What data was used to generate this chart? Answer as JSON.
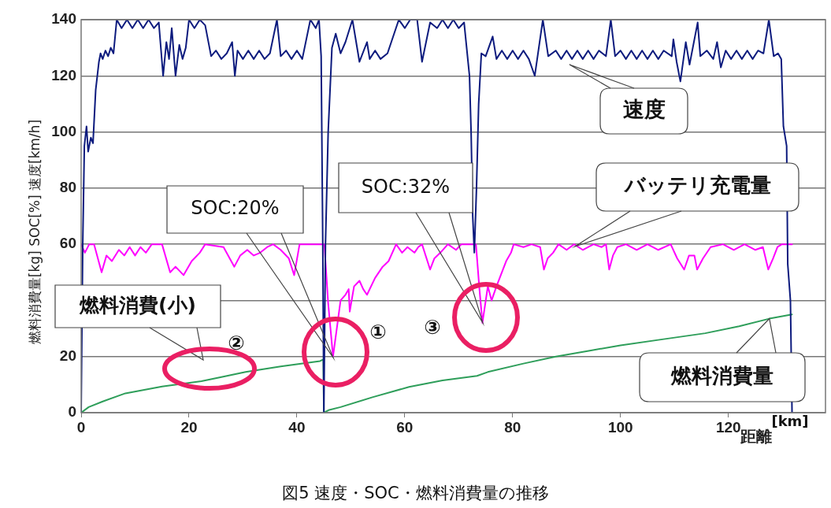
{
  "chart_data": {
    "type": "line",
    "title": "図5 速度・SOC・燃料消費量の推移",
    "xlabel": "距離",
    "ylabel": "燃料消費量[kg] SOC[%] 速度[km/h]",
    "xlim": [
      0,
      138
    ],
    "xticks": [
      0,
      20,
      40,
      60,
      80,
      100,
      120
    ],
    "ylim": [
      0,
      140
    ],
    "yticks": [
      0,
      20,
      {
        "value": 40,
        "label": null
      },
      60,
      80,
      100,
      120,
      140
    ],
    "grid": "y",
    "legend": false,
    "marker": "none",
    "line_style": "solid",
    "series": [
      {
        "color": "#0d1b7e",
        "x": [
          0,
          0.3,
          0.6,
          1.0,
          1.3,
          1.8,
          2.2,
          2.7,
          3.3,
          3.6,
          4,
          4.5,
          5,
          5.5,
          6.0,
          6.6,
          7.5,
          8.5,
          9.5,
          10.5,
          11.5,
          12.5,
          13.5,
          14.4,
          15.2,
          15.8,
          16.3,
          16.8,
          17.5,
          18.2,
          18.8,
          19.4,
          20.0,
          21,
          22,
          23,
          24.1,
          25,
          26,
          27,
          28,
          28.5,
          29,
          30,
          31,
          32,
          33,
          34,
          35,
          36.3,
          37,
          38,
          39,
          40,
          41,
          42.5,
          43.5,
          44.1,
          44.5,
          44.8,
          45.0,
          45.3,
          45.8,
          46.5,
          47.2,
          48.1,
          49,
          50.3,
          51.6,
          53,
          53.5,
          54.5,
          55.5,
          56.8,
          58.9,
          60,
          61,
          62.3,
          63.2,
          64.7,
          66,
          67,
          68,
          69,
          70,
          71,
          72.0,
          72.3,
          72.6,
          72.9,
          73.3,
          73.7,
          74.2,
          75,
          76.3,
          77,
          78,
          79,
          80,
          81,
          82,
          83,
          84.1,
          85.6,
          86.6,
          88,
          89,
          90,
          91,
          92,
          93,
          94,
          95,
          96,
          97.3,
          98.2,
          99,
          100,
          101,
          102,
          103,
          104,
          105,
          106,
          107,
          108,
          109.5,
          109.8,
          110.4,
          111.1,
          112.1,
          112.8,
          114.3,
          114.8,
          116,
          117.2,
          117.9,
          118.6,
          119.5,
          120.5,
          121.5,
          122.5,
          123.5,
          124.5,
          125.5,
          126.5,
          127.5,
          128.4,
          129.2,
          129.8,
          130.2,
          130.8,
          131.0,
          131.5,
          131.8
        ],
        "values": [
          0,
          60,
          95,
          102,
          93,
          98,
          96,
          115,
          125,
          128,
          126,
          129,
          127,
          130,
          128,
          140,
          137,
          140,
          137,
          140,
          137,
          140,
          137,
          139,
          120,
          132,
          126,
          137,
          120,
          131,
          126,
          130,
          140,
          137,
          140,
          138,
          127,
          129,
          126,
          128,
          132,
          120,
          129,
          126,
          129,
          126,
          129,
          126,
          128,
          140,
          127,
          129,
          126,
          129,
          126,
          140,
          137,
          140,
          127,
          60,
          0,
          60,
          100,
          130,
          135,
          128,
          132,
          140,
          125,
          132,
          126,
          129,
          126,
          128,
          140,
          137,
          140,
          140,
          125,
          139,
          137,
          140,
          137,
          140,
          137,
          139,
          120,
          100,
          70,
          57,
          80,
          110,
          128,
          127,
          134,
          126,
          129,
          126,
          129,
          126,
          129,
          126,
          120,
          140,
          127,
          129,
          126,
          129,
          126,
          129,
          126,
          129,
          126,
          129,
          127,
          140,
          127,
          129,
          126,
          129,
          126,
          129,
          126,
          129,
          126,
          129,
          127,
          133,
          125,
          118,
          132,
          124,
          139,
          127,
          129,
          126,
          132,
          123,
          129,
          126,
          129,
          126,
          129,
          126,
          129,
          128,
          140,
          127,
          128,
          126,
          102,
          95,
          53,
          40,
          0
        ]
      },
      {
        "color": "#ff00ff",
        "x": [
          0,
          0.7,
          1.5,
          2.4,
          3.8,
          4.7,
          5.7,
          7,
          8,
          9,
          10,
          11,
          12,
          13.1,
          15,
          16.5,
          17.5,
          19,
          20.5,
          22,
          23,
          26.4,
          28.4,
          29.5,
          30.8,
          32,
          33.2,
          34.5,
          35.6,
          37,
          38.5,
          39.5,
          40.5,
          45.1,
          45.8,
          46.7,
          47.4,
          48.1,
          49.0,
          49.6,
          49.8,
          50.6,
          51.6,
          52.3,
          53,
          54.5,
          55.9,
          57,
          58.4,
          59.5,
          60.5,
          61.8,
          62.5,
          63.2,
          64.7,
          65.5,
          66.6,
          68,
          69.5,
          70.5,
          73.2,
          73.8,
          74.4,
          75.4,
          76.1,
          77,
          77.8,
          78.8,
          79.7,
          80.2,
          82,
          83.5,
          85.1,
          85.8,
          86.5,
          87.5,
          88.5,
          90,
          91.4,
          93,
          95,
          96.5,
          97.3,
          97.9,
          98.6,
          99.4,
          101,
          103,
          105,
          107,
          109.3,
          110.5,
          111.8,
          112.7,
          113.7,
          114.2,
          115.3,
          116.7,
          119,
          121,
          123,
          125,
          126.4,
          127.4,
          128.3,
          129.1,
          129.9,
          131.8
        ],
        "values": [
          60,
          57,
          60,
          60,
          50,
          56,
          54,
          58,
          56,
          59,
          56,
          59,
          57,
          60,
          60,
          50,
          52,
          49,
          54,
          57,
          60,
          59,
          52,
          56,
          58,
          56,
          57,
          59,
          60,
          58,
          55,
          49,
          60,
          60,
          39,
          20,
          30,
          40,
          42,
          44,
          36,
          45,
          47,
          44,
          42,
          48,
          52,
          54,
          60,
          57,
          59,
          57,
          59,
          60,
          51,
          55,
          57,
          60,
          58,
          60,
          60,
          45,
          32,
          45,
          40,
          45,
          49,
          54,
          57,
          60,
          59,
          60,
          59,
          51,
          55,
          57,
          60,
          58,
          60,
          58,
          60,
          59,
          60,
          51,
          56,
          59,
          60,
          58,
          60,
          58,
          60,
          55,
          51,
          56,
          56,
          51,
          55,
          59,
          60,
          58,
          60,
          58,
          59,
          51,
          55,
          59,
          60,
          60
        ]
      },
      {
        "color": "#2e9e5a",
        "x": [
          0,
          1.4,
          4,
          8.2,
          15,
          22.3,
          26,
          30.5,
          37,
          44.3,
          44.9,
          45.0,
          46,
          48.1,
          54,
          60.8,
          67,
          73.4,
          75.4,
          82,
          88,
          94.3,
          100,
          108,
          115.7,
          122,
          127.6,
          131.8
        ],
        "values": [
          0,
          2,
          4,
          6.9,
          9.3,
          11.2,
          12.7,
          14.5,
          16.5,
          18.4,
          19,
          0,
          1,
          2,
          5.5,
          9.2,
          11.5,
          13.1,
          14.5,
          17.5,
          20,
          22.1,
          24,
          26.2,
          28.3,
          30.8,
          33.5,
          35
        ]
      }
    ],
    "annotations": [
      "SOC:20%",
      "燃料消費(小)",
      "SOC:32%",
      "速度",
      "バッテリ充電量",
      {
        "text": "燃料消費量",
        "x": 127.6,
        "y": 33.5
      },
      "①",
      "②",
      "③",
      "[km]"
    ]
  }
}
